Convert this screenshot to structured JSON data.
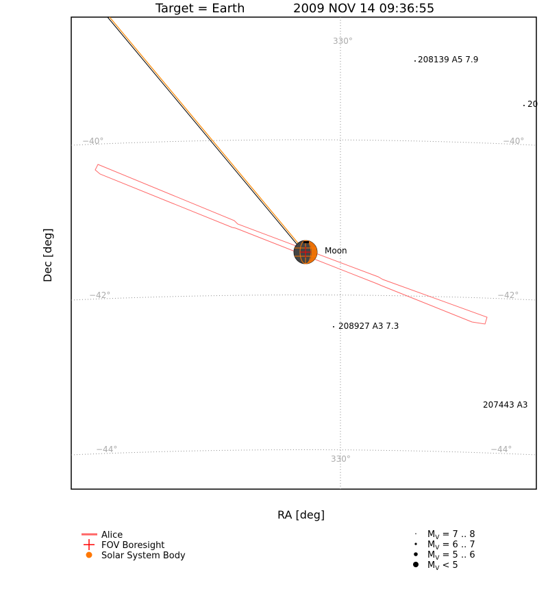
{
  "title": {
    "target": "Target = Earth",
    "datetime": "2009 NOV 14 09:36:55"
  },
  "axes": {
    "xlabel": "RA [deg]",
    "ylabel": "Dec [deg]"
  },
  "grid": {
    "ra_label": "330°",
    "dec_labels": [
      "−40°",
      "−42°",
      "−44°"
    ]
  },
  "body": {
    "name": "Moon"
  },
  "stars": [
    {
      "label": "208139 A5 7.9"
    },
    {
      "label": "20"
    },
    {
      "label": "208927 A3 7.3"
    },
    {
      "label": "207443 A3"
    }
  ],
  "legend": {
    "left": [
      {
        "label": "Alice",
        "color": "#ff6666",
        "symbol": "line"
      },
      {
        "label": "FOV Boresight",
        "color": "#ff0000",
        "symbol": "cross"
      },
      {
        "label": "Solar System Body",
        "color": "#ff7700",
        "symbol": "dot"
      }
    ],
    "right": [
      {
        "prefix": "M",
        "sub": "V",
        "suffix": " = 7 .. 8"
      },
      {
        "prefix": "M",
        "sub": "V",
        "suffix": " = 6 .. 7"
      },
      {
        "prefix": "M",
        "sub": "V",
        "suffix": " = 5 .. 6"
      },
      {
        "prefix": "M",
        "sub": "V",
        "suffix": " < 5"
      }
    ]
  },
  "colors": {
    "alice": "#ff6666",
    "boresight": "#ff0000",
    "body": "#ff7700",
    "grid": "#888888",
    "grid_label": "#aaaaaa"
  }
}
